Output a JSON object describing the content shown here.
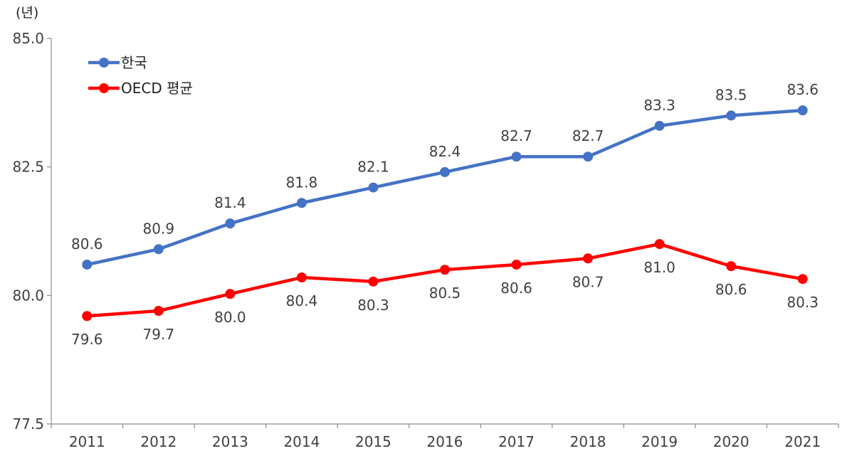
{
  "chart_data": {
    "type": "line",
    "y_unit_label": "(년)",
    "categories": [
      "2011",
      "2012",
      "2013",
      "2014",
      "2015",
      "2016",
      "2017",
      "2018",
      "2019",
      "2020",
      "2021"
    ],
    "series": [
      {
        "name": "한국",
        "color": "#4472C4",
        "values": [
          80.6,
          80.9,
          81.4,
          81.8,
          82.1,
          82.4,
          82.7,
          82.7,
          83.3,
          83.5,
          83.6
        ],
        "value_labels": [
          "80.6",
          "80.9",
          "81.4",
          "81.8",
          "82.1",
          "82.4",
          "82.7",
          "82.7",
          "83.3",
          "83.5",
          "83.6"
        ],
        "label_position": "above"
      },
      {
        "name": "OECD 평균",
        "color": "#FF0000",
        "values": [
          79.6,
          79.7,
          80.03,
          80.35,
          80.27,
          80.5,
          80.6,
          80.72,
          81.0,
          80.57,
          80.32
        ],
        "value_labels": [
          "79.6",
          "79.7",
          "80.0",
          "80.4",
          "80.3",
          "80.5",
          "80.6",
          "80.7",
          "81.0",
          "80.6",
          "80.3"
        ],
        "label_position": "below"
      }
    ],
    "ylim": [
      77.5,
      85.0
    ],
    "yticks": [
      "77.5",
      "80.0",
      "82.5",
      "85.0"
    ],
    "ytick_values": [
      77.5,
      80.0,
      82.5,
      85.0
    ],
    "grid": false,
    "legend_position": "top-left"
  }
}
